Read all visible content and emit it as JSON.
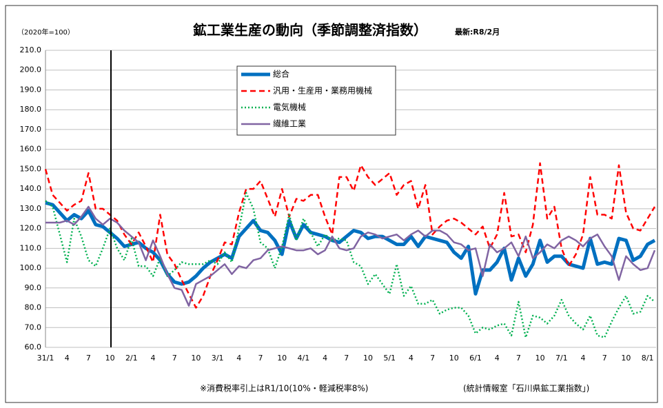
{
  "chart_data": {
    "type": "line",
    "title": "鉱工業生産の動向（季節調整済指数）",
    "subtitle": "最新:R8/2月",
    "y_label": "（2020年=100）",
    "annotations": [
      "※消費税率引上はR1/10(10%・軽減税率8%)",
      "(統計情報室「石川県鉱工業指数」)"
    ],
    "categories": [
      "31/1",
      null,
      null,
      "4",
      null,
      null,
      "7",
      null,
      null,
      "10",
      null,
      null,
      "2/1",
      null,
      null,
      "4",
      null,
      null,
      "7",
      null,
      null,
      "10",
      null,
      null,
      "3/1",
      null,
      null,
      "4",
      null,
      null,
      "7",
      null,
      null,
      "10",
      null,
      null,
      "4/1",
      null,
      null,
      "4",
      null,
      null,
      "7",
      null,
      null,
      "10",
      null,
      null,
      "5/1",
      null,
      null,
      "4",
      null,
      null,
      "7",
      null,
      null,
      "10",
      null,
      null,
      "6/1",
      null,
      null,
      "4",
      null,
      null,
      "7",
      null,
      null,
      "10",
      null,
      null,
      "7/1",
      null,
      null,
      "4",
      null,
      null,
      "7",
      null,
      null,
      "10",
      null,
      null,
      "8/1",
      null
    ],
    "series": [
      {
        "name": "総合",
        "color": "#0070c0",
        "dash": "solid",
        "width": 5,
        "values": [
          133,
          132,
          128,
          124,
          127,
          125,
          129,
          122,
          121,
          118,
          115,
          111,
          112,
          113,
          110,
          108,
          104,
          97,
          93,
          92,
          93,
          96,
          100,
          103,
          105,
          107,
          105,
          116,
          120,
          124,
          119,
          118,
          114,
          107,
          124,
          115,
          122,
          118,
          117,
          116,
          114,
          113,
          116,
          119,
          118,
          115,
          116,
          116,
          114,
          112,
          112,
          116,
          111,
          116,
          115,
          114,
          113,
          108,
          105,
          111,
          87,
          99,
          99,
          103,
          110,
          94,
          105,
          96,
          102,
          114,
          103,
          106,
          106,
          102,
          101,
          100,
          115,
          102,
          103,
          102,
          115,
          114,
          104,
          106,
          112,
          114
        ]
      },
      {
        "name": "汎用・生産用・業務用機械",
        "color": "#ff0000",
        "dash": "dashed",
        "width": 2.5,
        "values": [
          150,
          137,
          133,
          129,
          132,
          134,
          148,
          130,
          130,
          127,
          124,
          117,
          112,
          118,
          111,
          103,
          127,
          107,
          102,
          94,
          87,
          80,
          86,
          96,
          104,
          113,
          112,
          128,
          140,
          140,
          144,
          135,
          126,
          140,
          126,
          135,
          134,
          137,
          137,
          126,
          117,
          146,
          146,
          139,
          152,
          146,
          142,
          145,
          148,
          137,
          142,
          144,
          130,
          142,
          117,
          121,
          124,
          125,
          123,
          120,
          117,
          121,
          110,
          117,
          138,
          116,
          117,
          108,
          122,
          153,
          125,
          131,
          110,
          101,
          107,
          117,
          146,
          127,
          127,
          125,
          152,
          128,
          120,
          119,
          125,
          131
        ]
      },
      {
        "name": "電気機械",
        "color": "#00b050",
        "dash": "dotted",
        "width": 2.5,
        "values": [
          134,
          131,
          117,
          103,
          125,
          116,
          104,
          101,
          110,
          120,
          110,
          104,
          115,
          101,
          101,
          96,
          105,
          96,
          99,
          103,
          102,
          102,
          102,
          104,
          102,
          108,
          103,
          120,
          138,
          130,
          113,
          110,
          100,
          111,
          127,
          114,
          125,
          118,
          111,
          117,
          114,
          115,
          114,
          103,
          101,
          92,
          97,
          92,
          87,
          102,
          86,
          91,
          82,
          82,
          84,
          77,
          79,
          80,
          80,
          76,
          67,
          70,
          69,
          71,
          72,
          66,
          83,
          65,
          76,
          75,
          72,
          76,
          84,
          76,
          72,
          69,
          76,
          66,
          65,
          73,
          80,
          86,
          77,
          78,
          86,
          83
        ]
      },
      {
        "name": "繊維工業",
        "color": "#8064a2",
        "dash": "solid",
        "width": 2.5,
        "values": [
          123,
          123,
          123,
          124,
          122,
          126,
          131,
          125,
          122,
          125,
          123,
          119,
          116,
          113,
          104,
          114,
          106,
          97,
          90,
          89,
          81,
          92,
          94,
          96,
          99,
          102,
          97,
          101,
          100,
          104,
          105,
          109,
          110,
          111,
          110,
          109,
          109,
          110,
          107,
          109,
          116,
          110,
          109,
          110,
          116,
          118,
          117,
          115,
          116,
          117,
          114,
          117,
          119,
          116,
          119,
          119,
          117,
          113,
          112,
          109,
          110,
          96,
          112,
          108,
          110,
          113,
          106,
          116,
          105,
          108,
          112,
          110,
          114,
          116,
          114,
          111,
          115,
          117,
          111,
          106,
          94,
          106,
          102,
          99,
          100,
          109
        ]
      }
    ],
    "ylim": [
      60,
      210
    ],
    "yticks": [
      {
        "value": 60,
        "label": "60.0"
      },
      {
        "value": 70,
        "label": "70.0"
      },
      {
        "value": 80,
        "label": "80.0"
      },
      {
        "value": 90,
        "label": "90.0"
      },
      {
        "value": 100,
        "label": "100.0"
      },
      {
        "value": 110,
        "label": "110.0"
      },
      {
        "value": 120,
        "label": "120.0"
      },
      {
        "value": 130,
        "label": "130.0"
      },
      {
        "value": 140,
        "label": "140.0"
      },
      {
        "value": 150,
        "label": "150.0"
      },
      {
        "value": 160,
        "label": "160.0"
      },
      {
        "value": 170,
        "label": "170.0"
      },
      {
        "value": 180,
        "label": "180.0"
      },
      {
        "value": 190,
        "label": "190.0"
      },
      {
        "value": 200,
        "label": "200.0"
      },
      {
        "value": 210,
        "label": "210.0"
      }
    ],
    "grid": true
  }
}
